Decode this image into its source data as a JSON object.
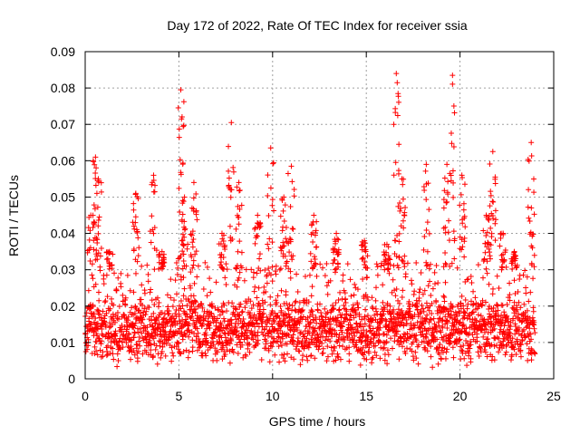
{
  "chart_data": {
    "type": "scatter",
    "title": "Day 172 of 2022, Rate Of TEC Index for receiver ssia",
    "xlabel": "GPS time / hours",
    "ylabel": "ROTI / TECUs",
    "xlim": [
      0,
      25
    ],
    "ylim": [
      0,
      0.09
    ],
    "x_ticks": [
      "0",
      "5",
      "10",
      "15",
      "20",
      "25"
    ],
    "y_ticks": [
      "0",
      "0.01",
      "0.02",
      "0.03",
      "0.04",
      "0.05",
      "0.06",
      "0.07",
      "0.08",
      "0.09"
    ],
    "grid": true,
    "marker": "+",
    "series_color": "#ff0000",
    "baseline": {
      "median": 0.014,
      "typical_range": [
        0.005,
        0.032
      ]
    },
    "peaks": [
      {
        "x": 0.3,
        "y": 0.045
      },
      {
        "x": 0.55,
        "y": 0.061
      },
      {
        "x": 0.7,
        "y": 0.055
      },
      {
        "x": 1.3,
        "y": 0.035
      },
      {
        "x": 2.7,
        "y": 0.051
      },
      {
        "x": 3.65,
        "y": 0.056
      },
      {
        "x": 4.1,
        "y": 0.035
      },
      {
        "x": 5.1,
        "y": 0.0795
      },
      {
        "x": 5.3,
        "y": 0.05
      },
      {
        "x": 5.8,
        "y": 0.054
      },
      {
        "x": 7.3,
        "y": 0.04
      },
      {
        "x": 7.8,
        "y": 0.0705
      },
      {
        "x": 8.2,
        "y": 0.054
      },
      {
        "x": 9.2,
        "y": 0.045
      },
      {
        "x": 9.9,
        "y": 0.0635
      },
      {
        "x": 10.6,
        "y": 0.05
      },
      {
        "x": 11.0,
        "y": 0.0585
      },
      {
        "x": 12.2,
        "y": 0.045
      },
      {
        "x": 13.4,
        "y": 0.04
      },
      {
        "x": 14.9,
        "y": 0.038
      },
      {
        "x": 16.1,
        "y": 0.037
      },
      {
        "x": 16.6,
        "y": 0.084
      },
      {
        "x": 16.9,
        "y": 0.055
      },
      {
        "x": 18.2,
        "y": 0.059
      },
      {
        "x": 19.3,
        "y": 0.059
      },
      {
        "x": 19.6,
        "y": 0.0835
      },
      {
        "x": 20.1,
        "y": 0.056
      },
      {
        "x": 21.4,
        "y": 0.045
      },
      {
        "x": 21.75,
        "y": 0.0625
      },
      {
        "x": 22.3,
        "y": 0.04
      },
      {
        "x": 22.9,
        "y": 0.035
      },
      {
        "x": 23.8,
        "y": 0.065
      }
    ]
  }
}
